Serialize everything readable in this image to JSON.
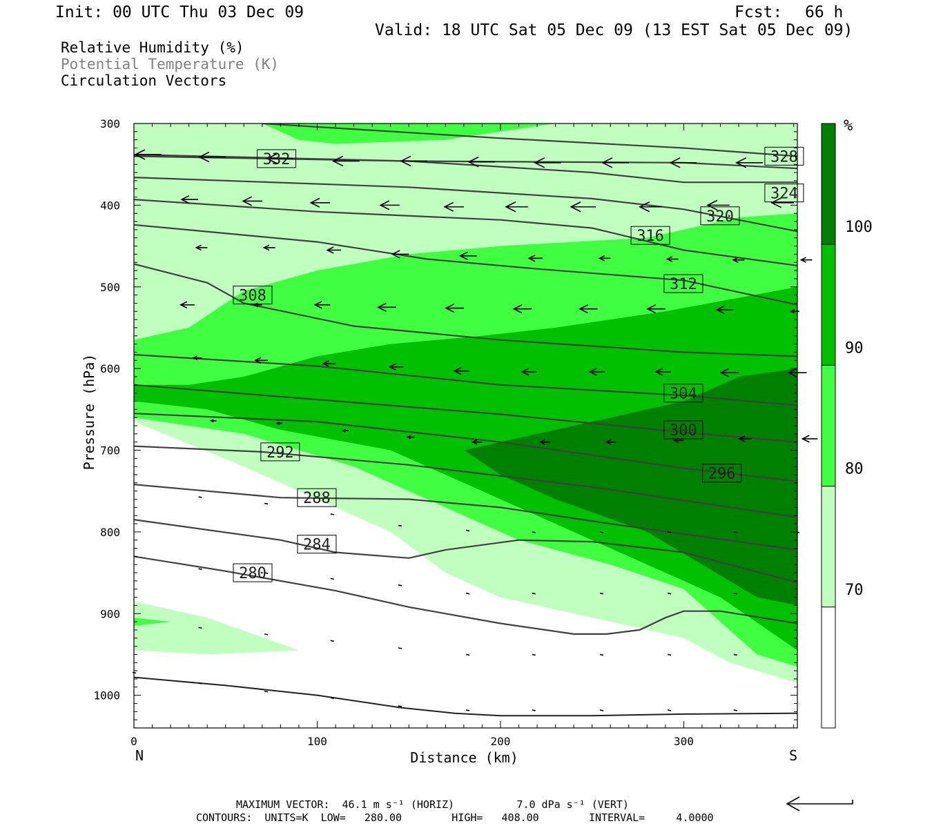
{
  "header": {
    "init": "Init: 00 UTC Thu 03 Dec 09",
    "fcst_label": "Fcst:",
    "fcst_value": "66 h",
    "valid": "Valid: 18 UTC Sat 05 Dec 09 (13 EST Sat 05 Dec 09)"
  },
  "legend_lines": [
    {
      "text": "Relative Humidity (%)",
      "color": "#000000"
    },
    {
      "text": "Potential Temperature (K)",
      "color": "#808080"
    },
    {
      "text": "Circulation Vectors",
      "color": "#000000"
    }
  ],
  "footer": {
    "max_vector": "MAXIMUM VECTOR:  46.1 m s⁻¹ (HORIZ)          7.0 dPa s⁻¹ (VERT)",
    "contours": "CONTOURS:  UNITS=K  LOW=   280.00        HIGH=   408.00        INTERVAL=     4.0000"
  },
  "colors": {
    "rh_70_80": "#c0ffc0",
    "rh_80_90": "#40ff40",
    "rh_90_100": "#00c000",
    "rh_100": "#008000",
    "contour": "#404040",
    "vector": "#000000"
  },
  "chart_data": {
    "type": "cross-section",
    "xlabel": "Distance (km)",
    "ylabel": "Pressure (hPa)",
    "x_end_labels": {
      "left": "N",
      "right": "S"
    },
    "xlim": [
      0,
      362
    ],
    "ylim": [
      300,
      1040
    ],
    "xticks": [
      0,
      100,
      200,
      300
    ],
    "yticks": [
      300,
      400,
      500,
      600,
      700,
      800,
      900,
      1000
    ],
    "colorbar": {
      "unit": "%",
      "levels": [
        70,
        80,
        90,
        100
      ]
    },
    "rh_fill": {
      "r70": [
        [
          0,
          300
        ],
        [
          362,
          300
        ],
        [
          362,
          985
        ],
        [
          325,
          960
        ],
        [
          300,
          930
        ],
        [
          250,
          905
        ],
        [
          200,
          880
        ],
        [
          170,
          850
        ],
        [
          140,
          800
        ],
        [
          60,
          720
        ],
        [
          0,
          665
        ]
      ],
      "r70_island": [
        [
          0,
          885
        ],
        [
          40,
          905
        ],
        [
          90,
          945
        ],
        [
          40,
          950
        ],
        [
          0,
          945
        ]
      ],
      "r80": [
        [
          362,
          410
        ],
        [
          330,
          415
        ],
        [
          280,
          440
        ],
        [
          200,
          450
        ],
        [
          150,
          460
        ],
        [
          100,
          480
        ],
        [
          60,
          505
        ],
        [
          30,
          550
        ],
        [
          0,
          565
        ],
        [
          0,
          660
        ],
        [
          60,
          680
        ],
        [
          120,
          720
        ],
        [
          170,
          770
        ],
        [
          210,
          810
        ],
        [
          260,
          840
        ],
        [
          300,
          870
        ],
        [
          320,
          910
        ],
        [
          340,
          950
        ],
        [
          362,
          965
        ]
      ],
      "r80_island": [
        [
          0,
          905
        ],
        [
          20,
          910
        ],
        [
          0,
          915
        ]
      ],
      "r80_top": [
        [
          70,
          300
        ],
        [
          230,
          300
        ],
        [
          200,
          310
        ],
        [
          170,
          320
        ],
        [
          110,
          325
        ],
        [
          90,
          320
        ]
      ],
      "r90": [
        [
          362,
          500
        ],
        [
          290,
          530
        ],
        [
          230,
          550
        ],
        [
          190,
          560
        ],
        [
          140,
          570
        ],
        [
          100,
          585
        ],
        [
          60,
          610
        ],
        [
          30,
          620
        ],
        [
          0,
          620
        ],
        [
          0,
          640
        ],
        [
          40,
          650
        ],
        [
          80,
          675
        ],
        [
          140,
          700
        ],
        [
          180,
          740
        ],
        [
          220,
          780
        ],
        [
          260,
          820
        ],
        [
          300,
          860
        ],
        [
          320,
          880
        ],
        [
          362,
          945
        ]
      ],
      "r100": [
        [
          362,
          600
        ],
        [
          330,
          610
        ],
        [
          300,
          640
        ],
        [
          260,
          660
        ],
        [
          220,
          680
        ],
        [
          180,
          700
        ],
        [
          200,
          730
        ],
        [
          230,
          760
        ],
        [
          280,
          800
        ],
        [
          310,
          840
        ],
        [
          340,
          880
        ],
        [
          362,
          890
        ]
      ]
    },
    "contours": [
      {
        "level": 280,
        "points": [
          [
            0,
            830
          ],
          [
            50,
            848
          ],
          [
            110,
            872
          ],
          [
            150,
            892
          ],
          [
            200,
            912
          ],
          [
            240,
            925
          ],
          [
            258,
            925
          ],
          [
            276,
            920
          ],
          [
            290,
            905
          ],
          [
            300,
            897
          ],
          [
            320,
            897
          ],
          [
            362,
            912
          ]
        ],
        "label_at": [
          55,
          850
        ]
      },
      {
        "level": 284,
        "points": [
          [
            0,
            785
          ],
          [
            80,
            810
          ],
          [
            110,
            825
          ],
          [
            150,
            832
          ],
          [
            170,
            822
          ],
          [
            210,
            810
          ],
          [
            250,
            812
          ],
          [
            300,
            825
          ],
          [
            362,
            862
          ]
        ],
        "label_at": [
          90,
          815
        ]
      },
      {
        "level": 288,
        "points": [
          [
            0,
            742
          ],
          [
            80,
            758
          ],
          [
            150,
            760
          ],
          [
            200,
            770
          ],
          [
            260,
            790
          ],
          [
            362,
            822
          ]
        ],
        "label_at": [
          90,
          758
        ]
      },
      {
        "level": 292,
        "points": [
          [
            0,
            695
          ],
          [
            70,
            702
          ],
          [
            150,
            718
          ],
          [
            250,
            745
          ],
          [
            362,
            782
          ]
        ],
        "label_at": [
          70,
          702
        ]
      },
      {
        "level": 296,
        "points": [
          [
            0,
            655
          ],
          [
            100,
            665
          ],
          [
            200,
            690
          ],
          [
            300,
            722
          ],
          [
            362,
            738
          ]
        ],
        "label_at": [
          311,
          728
        ]
      },
      {
        "level": 300,
        "points": [
          [
            0,
            620
          ],
          [
            100,
            638
          ],
          [
            200,
            656
          ],
          [
            300,
            678
          ],
          [
            362,
            690
          ]
        ],
        "label_at": [
          290,
          675
        ]
      },
      {
        "level": 304,
        "points": [
          [
            0,
            583
          ],
          [
            100,
            597
          ],
          [
            200,
            620
          ],
          [
            300,
            633
          ],
          [
            362,
            645
          ]
        ],
        "label_at": [
          290,
          630
        ]
      },
      {
        "level": 308,
        "points": [
          [
            0,
            472
          ],
          [
            40,
            495
          ],
          [
            60,
            520
          ],
          [
            120,
            548
          ],
          [
            200,
            565
          ],
          [
            300,
            580
          ],
          [
            362,
            585
          ]
        ],
        "label_at": [
          55,
          510
        ]
      },
      {
        "level": 312,
        "points": [
          [
            0,
            424
          ],
          [
            100,
            445
          ],
          [
            160,
            466
          ],
          [
            220,
            478
          ],
          [
            300,
            492
          ],
          [
            362,
            522
          ]
        ],
        "label_at": [
          290,
          496
        ]
      },
      {
        "level": 316,
        "points": [
          [
            0,
            393
          ],
          [
            100,
            408
          ],
          [
            200,
            418
          ],
          [
            250,
            428
          ],
          [
            300,
            455
          ],
          [
            362,
            474
          ]
        ],
        "label_at": [
          272,
          437
        ]
      },
      {
        "level": 320,
        "points": [
          [
            0,
            366
          ],
          [
            150,
            378
          ],
          [
            250,
            392
          ],
          [
            300,
            405
          ],
          [
            362,
            432
          ]
        ],
        "label_at": [
          310,
          413
        ]
      },
      {
        "level": 324,
        "points": [
          [
            0,
            340
          ],
          [
            150,
            346
          ],
          [
            250,
            360
          ],
          [
            300,
            372
          ],
          [
            362,
            372
          ]
        ],
        "label_at": [
          345,
          385
        ]
      },
      {
        "level": 328,
        "points": [
          [
            0,
            338
          ],
          [
            150,
            346
          ],
          [
            300,
            348
          ],
          [
            362,
            355
          ]
        ],
        "label_at": [
          345,
          340
        ]
      },
      {
        "level": 332,
        "points": [
          [
            70,
            300
          ],
          [
            200,
            318
          ],
          [
            300,
            330
          ],
          [
            362,
            340
          ]
        ],
        "label_at": [
          68,
          343
        ]
      }
    ],
    "vectors": [
      {
        "x": 0,
        "p": 338,
        "dx": -38,
        "dy": 0
      },
      {
        "x": 35,
        "p": 341,
        "dx": -38,
        "dy": 0
      },
      {
        "x": 72,
        "p": 343,
        "dx": -38,
        "dy": 0
      },
      {
        "x": 108,
        "p": 346,
        "dx": -38,
        "dy": 0
      },
      {
        "x": 145,
        "p": 346,
        "dx": -38,
        "dy": 0
      },
      {
        "x": 182,
        "p": 347,
        "dx": -38,
        "dy": 0
      },
      {
        "x": 218,
        "p": 348,
        "dx": -38,
        "dy": 0
      },
      {
        "x": 255,
        "p": 348,
        "dx": -38,
        "dy": 0
      },
      {
        "x": 292,
        "p": 348,
        "dx": -38,
        "dy": 0
      },
      {
        "x": 328,
        "p": 348,
        "dx": -38,
        "dy": 0
      },
      {
        "x": 20,
        "p": 393,
        "dx": -24,
        "dy": 0
      },
      {
        "x": 55,
        "p": 395,
        "dx": -28,
        "dy": 0
      },
      {
        "x": 92,
        "p": 397,
        "dx": -28,
        "dy": 0
      },
      {
        "x": 130,
        "p": 400,
        "dx": -28,
        "dy": 0
      },
      {
        "x": 165,
        "p": 402,
        "dx": -28,
        "dy": 0
      },
      {
        "x": 200,
        "p": 402,
        "dx": -32,
        "dy": 0
      },
      {
        "x": 237,
        "p": 402,
        "dx": -36,
        "dy": 0
      },
      {
        "x": 273,
        "p": 402,
        "dx": -32,
        "dy": 0
      },
      {
        "x": 310,
        "p": 400,
        "dx": -32,
        "dy": 0
      },
      {
        "x": 345,
        "p": 397,
        "dx": -32,
        "dy": 0
      },
      {
        "x": 25,
        "p": 452,
        "dx": -16,
        "dy": 0
      },
      {
        "x": 62,
        "p": 452,
        "dx": -16,
        "dy": 0
      },
      {
        "x": 98,
        "p": 455,
        "dx": -20,
        "dy": 0
      },
      {
        "x": 135,
        "p": 460,
        "dx": -24,
        "dy": 0
      },
      {
        "x": 172,
        "p": 462,
        "dx": -24,
        "dy": 0
      },
      {
        "x": 208,
        "p": 465,
        "dx": -20,
        "dy": 0
      },
      {
        "x": 245,
        "p": 465,
        "dx": -16,
        "dy": 0
      },
      {
        "x": 282,
        "p": 466,
        "dx": -16,
        "dy": 0
      },
      {
        "x": 318,
        "p": 467,
        "dx": -16,
        "dy": 0
      },
      {
        "x": 355,
        "p": 467,
        "dx": -16,
        "dy": 0
      },
      {
        "x": 18,
        "p": 522,
        "dx": -20,
        "dy": 0
      },
      {
        "x": 55,
        "p": 522,
        "dx": -12,
        "dy": 0
      },
      {
        "x": 92,
        "p": 522,
        "dx": -22,
        "dy": 0
      },
      {
        "x": 128,
        "p": 525,
        "dx": -26,
        "dy": 0
      },
      {
        "x": 165,
        "p": 526,
        "dx": -26,
        "dy": 0
      },
      {
        "x": 202,
        "p": 527,
        "dx": -26,
        "dy": 0
      },
      {
        "x": 238,
        "p": 527,
        "dx": -26,
        "dy": 0
      },
      {
        "x": 275,
        "p": 527,
        "dx": -26,
        "dy": 0
      },
      {
        "x": 312,
        "p": 528,
        "dx": -24,
        "dy": 0
      },
      {
        "x": 348,
        "p": 530,
        "dx": -12,
        "dy": 0
      },
      {
        "x": 22,
        "p": 587,
        "dx": -12,
        "dy": 0
      },
      {
        "x": 58,
        "p": 590,
        "dx": -18,
        "dy": 0
      },
      {
        "x": 95,
        "p": 594,
        "dx": -18,
        "dy": 0
      },
      {
        "x": 132,
        "p": 598,
        "dx": -20,
        "dy": 0
      },
      {
        "x": 168,
        "p": 603,
        "dx": -22,
        "dy": 0
      },
      {
        "x": 205,
        "p": 604,
        "dx": -22,
        "dy": 0
      },
      {
        "x": 242,
        "p": 604,
        "dx": -22,
        "dy": 0
      },
      {
        "x": 278,
        "p": 604,
        "dx": -22,
        "dy": 0
      },
      {
        "x": 315,
        "p": 605,
        "dx": -26,
        "dy": 0
      },
      {
        "x": 352,
        "p": 605,
        "dx": -26,
        "dy": 0
      },
      {
        "x": 30,
        "p": 664,
        "dx": -8,
        "dy": 0
      },
      {
        "x": 66,
        "p": 667,
        "dx": -8,
        "dy": 0
      },
      {
        "x": 102,
        "p": 676,
        "dx": -8,
        "dy": 0
      },
      {
        "x": 138,
        "p": 684,
        "dx": -10,
        "dy": 0
      },
      {
        "x": 175,
        "p": 690,
        "dx": -14,
        "dy": 0
      },
      {
        "x": 212,
        "p": 690,
        "dx": -14,
        "dy": 0
      },
      {
        "x": 248,
        "p": 690,
        "dx": -14,
        "dy": 0
      },
      {
        "x": 285,
        "p": 688,
        "dx": -14,
        "dy": 0
      },
      {
        "x": 322,
        "p": 686,
        "dx": -18,
        "dy": 0
      },
      {
        "x": 358,
        "p": 686,
        "dx": -22,
        "dy": 0
      }
    ],
    "dots": [
      [
        36,
        757
      ],
      [
        72,
        765
      ],
      [
        108,
        778
      ],
      [
        145,
        792
      ],
      [
        182,
        798
      ],
      [
        218,
        800
      ],
      [
        255,
        800
      ],
      [
        292,
        800
      ],
      [
        328,
        800
      ],
      [
        362,
        800
      ],
      [
        36,
        845
      ],
      [
        72,
        850
      ],
      [
        108,
        857
      ],
      [
        145,
        865
      ],
      [
        182,
        875
      ],
      [
        218,
        875
      ],
      [
        255,
        875
      ],
      [
        292,
        875
      ],
      [
        328,
        875
      ],
      [
        36,
        917
      ],
      [
        72,
        925
      ],
      [
        108,
        933
      ],
      [
        145,
        942
      ],
      [
        182,
        950
      ],
      [
        218,
        950
      ],
      [
        255,
        950
      ],
      [
        292,
        950
      ],
      [
        328,
        950
      ],
      [
        0,
        972
      ],
      [
        36,
        985
      ],
      [
        72,
        995
      ],
      [
        108,
        1003
      ],
      [
        145,
        1013
      ],
      [
        182,
        1018
      ],
      [
        218,
        1018
      ],
      [
        255,
        1018
      ],
      [
        292,
        1018
      ],
      [
        328,
        1018
      ]
    ],
    "surface_line": [
      [
        0,
        978
      ],
      [
        50,
        988
      ],
      [
        100,
        1000
      ],
      [
        145,
        1015
      ],
      [
        175,
        1022
      ],
      [
        200,
        1025
      ],
      [
        250,
        1025
      ],
      [
        300,
        1023
      ],
      [
        362,
        1022
      ]
    ],
    "reference_vector": {
      "label": ""
    }
  }
}
